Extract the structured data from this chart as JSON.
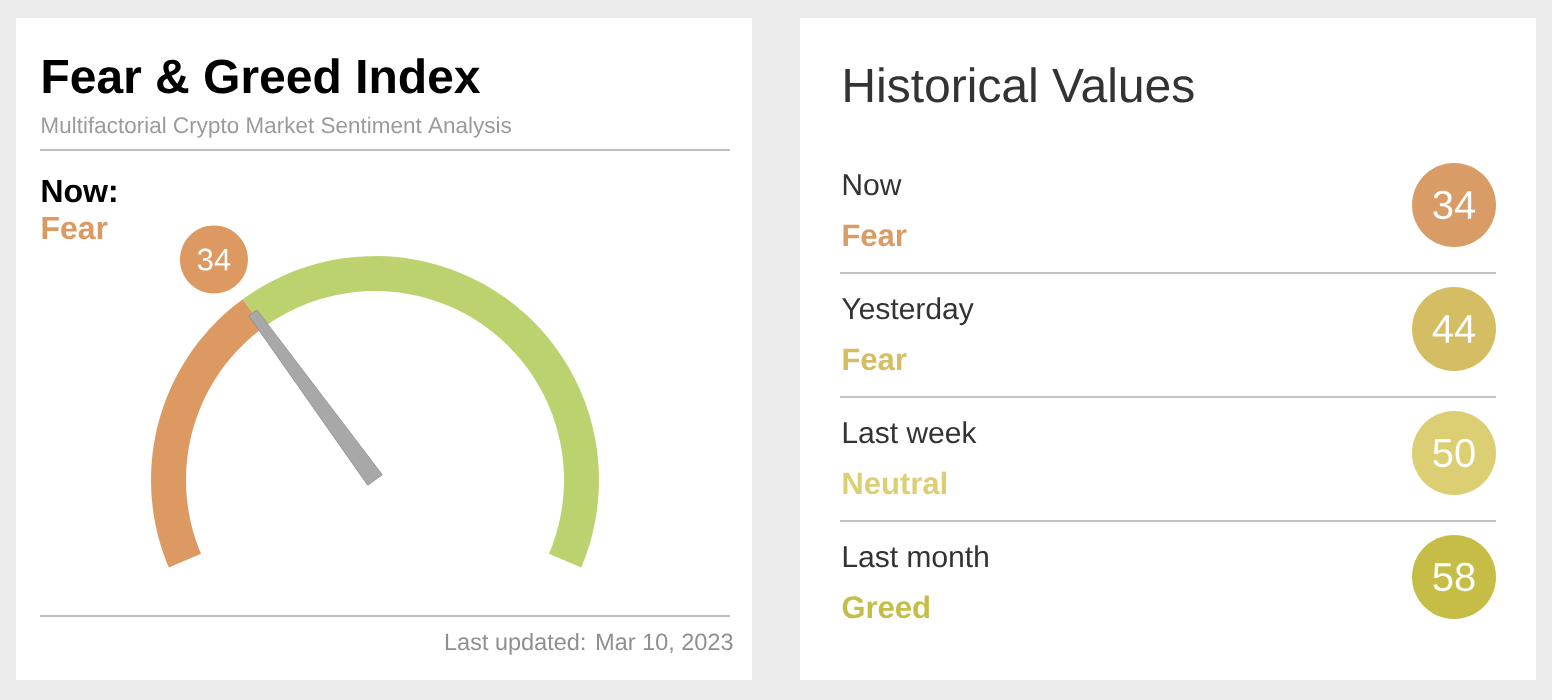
{
  "chart_data": [
    {
      "type": "donut",
      "title": "Fear & Greed Index",
      "subtitle": "Multifactorial Crypto Market Sentiment Analysis",
      "categories": [
        null,
        null
      ],
      "values": [
        34,
        66
      ],
      "colors": [
        "#dc9a62",
        "#bcd26e"
      ],
      "value_labels": [
        "34",
        null
      ],
      "annotations": [
        "Now:",
        "Fear",
        "Last updated: Mar 10, 2023"
      ]
    },
    {
      "type": "other",
      "title": "Historical Values",
      "categories": [
        "Now",
        "Yesterday",
        "Last week",
        "Last month"
      ],
      "values": [
        34,
        44,
        50,
        58
      ],
      "colors": [
        "#d99c66",
        "#d4bd63",
        "#dccf73",
        "#c5bd45"
      ],
      "data_labels": true,
      "annotations": [
        "Fear",
        "Fear",
        "Neutral",
        "Greed"
      ]
    }
  ]
}
